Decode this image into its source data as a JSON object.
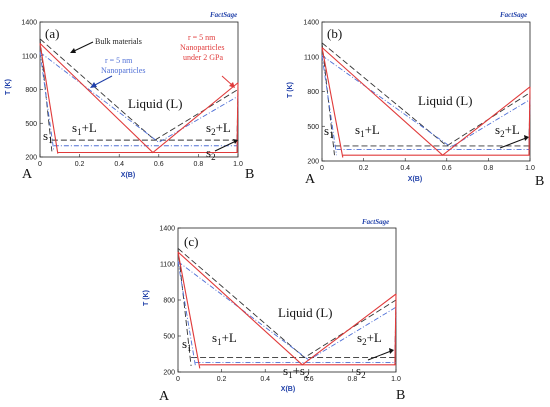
{
  "figure": {
    "logo_text": "FactSage",
    "corner_left": "A",
    "corner_right": "B",
    "region_labels": {
      "liquid": "Liquid (L)",
      "s1": "s",
      "s1L": "s",
      "s2L": "s",
      "s2": "s",
      "s1s2": "s",
      "sub1": "1",
      "sub2": "2",
      "plusL": "+L",
      "plus": "+"
    },
    "annotations": {
      "bulk": "Bulk materials",
      "nano": [
        "r = 5 nm",
        "Nanoparticles"
      ],
      "pressure": [
        "r = 5 nm",
        "Nanoparticles",
        "under 2 GPa"
      ]
    },
    "colors": {
      "bulk": "#333333",
      "nano": "#4f6fd6",
      "pressure": "#e03a3a",
      "axis_label": "#1f3fa8",
      "eutectic": "#555555"
    }
  },
  "chart_data": [
    {
      "type": "line",
      "panel": "(a)",
      "xlabel": "X(B)",
      "ylabel": "T (K)",
      "xlim": [
        0,
        1
      ],
      "ylim": [
        200,
        1400
      ],
      "xticks": [
        "0",
        "0.2",
        "0.4",
        "0.6",
        "0.8",
        "1.0"
      ],
      "yticks": [
        "200",
        "500",
        "800",
        "1100",
        "1400"
      ],
      "series": [
        {
          "name": "Bulk materials",
          "liquidus": [
            [
              0,
              1250
            ],
            [
              0.58,
              350
            ],
            [
              1,
              800
            ]
          ],
          "solidus_A": [
            [
              0,
              1250
            ],
            [
              0.06,
              250
            ]
          ],
          "eutectic_T": 350
        },
        {
          "name": "r = 5 nm Nanoparticles",
          "liquidus": [
            [
              0,
              1130
            ],
            [
              0.6,
              330
            ],
            [
              1,
              740
            ]
          ],
          "solidus_A": [
            [
              0,
              1130
            ],
            [
              0.07,
              250
            ]
          ],
          "eutectic_T": 300
        },
        {
          "name": "r = 5 nm Nanoparticles under 2 GPa",
          "liquidus": [
            [
              0,
              1210
            ],
            [
              0.57,
              240
            ],
            [
              1,
              860
            ]
          ],
          "solidus_A": [
            [
              0,
              1210
            ],
            [
              0.09,
              230
            ]
          ],
          "eutectic_T": 240
        }
      ]
    },
    {
      "type": "line",
      "panel": "(b)",
      "xlabel": "X(B)",
      "ylabel": "T (K)",
      "xlim": [
        0,
        1
      ],
      "ylim": [
        200,
        1400
      ],
      "xticks": [
        "0",
        "0.2",
        "0.4",
        "0.6",
        "0.8",
        "1.0"
      ],
      "yticks": [
        "200",
        "500",
        "800",
        "1100",
        "1400"
      ],
      "series": [
        {
          "liquidus": [
            [
              0,
              1220
            ],
            [
              0.6,
              330
            ],
            [
              1,
              790
            ]
          ],
          "solidus_A": [
            [
              0,
              1220
            ],
            [
              0.06,
              250
            ]
          ],
          "eutectic_T": 330
        },
        {
          "liquidus": [
            [
              0,
              1110
            ],
            [
              0.62,
              320
            ],
            [
              1,
              730
            ]
          ],
          "solidus_A": [
            [
              0,
              1110
            ],
            [
              0.07,
              250
            ]
          ],
          "eutectic_T": 300
        },
        {
          "liquidus": [
            [
              0,
              1180
            ],
            [
              0.58,
              250
            ],
            [
              1,
              840
            ]
          ],
          "solidus_A": [
            [
              0,
              1180
            ],
            [
              0.1,
              230
            ]
          ],
          "eutectic_T": 250
        }
      ]
    },
    {
      "type": "line",
      "panel": "(c)",
      "xlabel": "X(B)",
      "ylabel": "T (K)",
      "xlim": [
        0,
        1
      ],
      "ylim": [
        200,
        1400
      ],
      "xticks": [
        "0",
        "0.2",
        "0.4",
        "0.6",
        "0.8",
        "1.0"
      ],
      "yticks": [
        "200",
        "500",
        "800",
        "1100",
        "1400"
      ],
      "series": [
        {
          "liquidus": [
            [
              0,
              1230
            ],
            [
              0.58,
              320
            ],
            [
              1,
              800
            ]
          ],
          "solidus_A": [
            [
              0,
              1230
            ],
            [
              0.06,
              250
            ]
          ],
          "eutectic_T": 320
        },
        {
          "liquidus": [
            [
              0,
              1120
            ],
            [
              0.6,
              300
            ],
            [
              1,
              740
            ]
          ],
          "solidus_A": [
            [
              0,
              1120
            ],
            [
              0.08,
              250
            ]
          ],
          "eutectic_T": 280
        },
        {
          "liquidus": [
            [
              0,
              1200
            ],
            [
              0.57,
              260
            ],
            [
              1,
              850
            ]
          ],
          "solidus_A": [
            [
              0,
              1200
            ],
            [
              0.1,
              230
            ]
          ],
          "eutectic_T": 260
        }
      ]
    }
  ]
}
